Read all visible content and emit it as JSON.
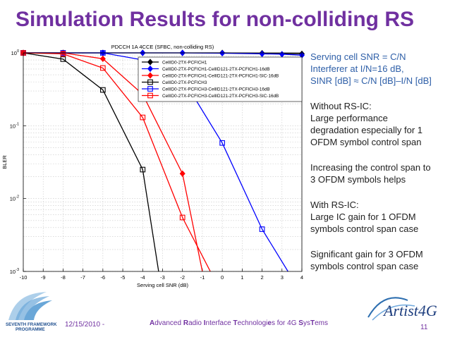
{
  "slide": {
    "title": "Simulation Results for non-colliding RS",
    "footer_date": "12/15/2010 -",
    "footer_title_parts": [
      "A",
      "dvanced ",
      "R",
      "adio ",
      "I",
      "nterface ",
      "T",
      "echnologi",
      "e",
      "s for 4G ",
      "S",
      "ys",
      "T",
      "ems"
    ],
    "page_number": "11",
    "fp_logo_text": [
      "SEVENTH FRAMEWORK",
      "PROGRAMME"
    ],
    "artist_logo_text": "Artist4G"
  },
  "bullets": [
    {
      "lines": [
        "Serving cell SNR = C/N",
        "Interferer at I/N=16 dB,",
        "SINR [dB] ≈ C/N [dB]–I/N [dB]"
      ],
      "style": "blue"
    },
    {
      "lines": [
        "Without RS-IC:",
        "Large performance",
        "degradation especially for 1",
        "OFDM symbol control span"
      ],
      "style": "plain"
    },
    {
      "lines": [
        "Increasing the control span to",
        "3 OFDM symbols helps"
      ],
      "style": "plain"
    },
    {
      "lines": [
        "With RS-IC:",
        "Large IC gain for 1 OFDM",
        "symbols control span case"
      ],
      "style": "plain"
    },
    {
      "lines": [
        "Significant gain for 3 OFDM",
        "symbols control span case"
      ],
      "style": "plain"
    }
  ],
  "chart_data": {
    "type": "line",
    "title": "PDCCH 1A 4CCE (SFBC, non-colliding RS)",
    "xlabel": "Serving cell SNR (dB)",
    "ylabel": "BLER",
    "xlim": [
      -10,
      4
    ],
    "ylim": [
      0.001,
      1
    ],
    "yscale": "log",
    "xticks": [
      -10,
      -9,
      -8,
      -7,
      -6,
      -5,
      -4,
      -3,
      -2,
      -1,
      0,
      1,
      2,
      3,
      4
    ],
    "yticks": [
      {
        "value": 1,
        "base": "10",
        "exp": "0"
      },
      {
        "value": 0.1,
        "base": "10",
        "exp": "-1"
      },
      {
        "value": 0.01,
        "base": "10",
        "exp": "-2"
      },
      {
        "value": 0.001,
        "base": "10",
        "exp": "-3"
      }
    ],
    "grid": true,
    "legend_position": "top-right",
    "series": [
      {
        "name": "CellID0-2TX-PCFICH1",
        "color": "#000000",
        "marker": "diamond",
        "x": [
          -10,
          -8,
          -6,
          -4,
          -2,
          0,
          2,
          4
        ],
        "y": [
          1,
          1,
          1,
          1,
          1,
          1,
          0.99,
          0.97
        ]
      },
      {
        "name": "CellID0-2TX-PCFICH1-CellID121-2TX-PCFICH1-16dB",
        "color": "#0000ff",
        "marker": "diamond",
        "x": [
          -10,
          -8,
          -6,
          -4,
          -2,
          0,
          2,
          3,
          4
        ],
        "y": [
          1,
          1,
          1,
          1,
          1,
          0.99,
          0.97,
          0.96,
          0.93
        ]
      },
      {
        "name": "CellID0-2TX-PCFICH1-CellID121-2TX-PCFICH1-SIC-16dB",
        "color": "#ff0000",
        "marker": "diamond",
        "x": [
          -10,
          -8,
          -6,
          -4,
          -2,
          -1
        ],
        "y": [
          1,
          1,
          0.83,
          0.27,
          0.022,
          0.001
        ]
      },
      {
        "name": "CellID0-2TX-PCFICH3",
        "color": "#000000",
        "marker": "square",
        "x": [
          -10,
          -8,
          -6,
          -4,
          -3.2
        ],
        "y": [
          1,
          0.82,
          0.31,
          0.025,
          0.001
        ]
      },
      {
        "name": "CellID0-2TX-PCFICH3-CellID121-2TX-PCFICH3-16dB",
        "color": "#0000ff",
        "marker": "square",
        "x": [
          -10,
          -8,
          -6,
          -4,
          -2,
          0,
          2,
          3.3
        ],
        "y": [
          1,
          1,
          1,
          0.8,
          0.45,
          0.058,
          0.0038,
          0.001
        ]
      },
      {
        "name": "CellID0-2TX-PCFICH3-CellID121-2TX-PCFICH3-SIC-16dB",
        "color": "#ff0000",
        "marker": "square",
        "x": [
          -10,
          -8,
          -6,
          -4,
          -2,
          -0.6
        ],
        "y": [
          1,
          0.97,
          0.62,
          0.13,
          0.0055,
          0.001
        ]
      }
    ]
  }
}
